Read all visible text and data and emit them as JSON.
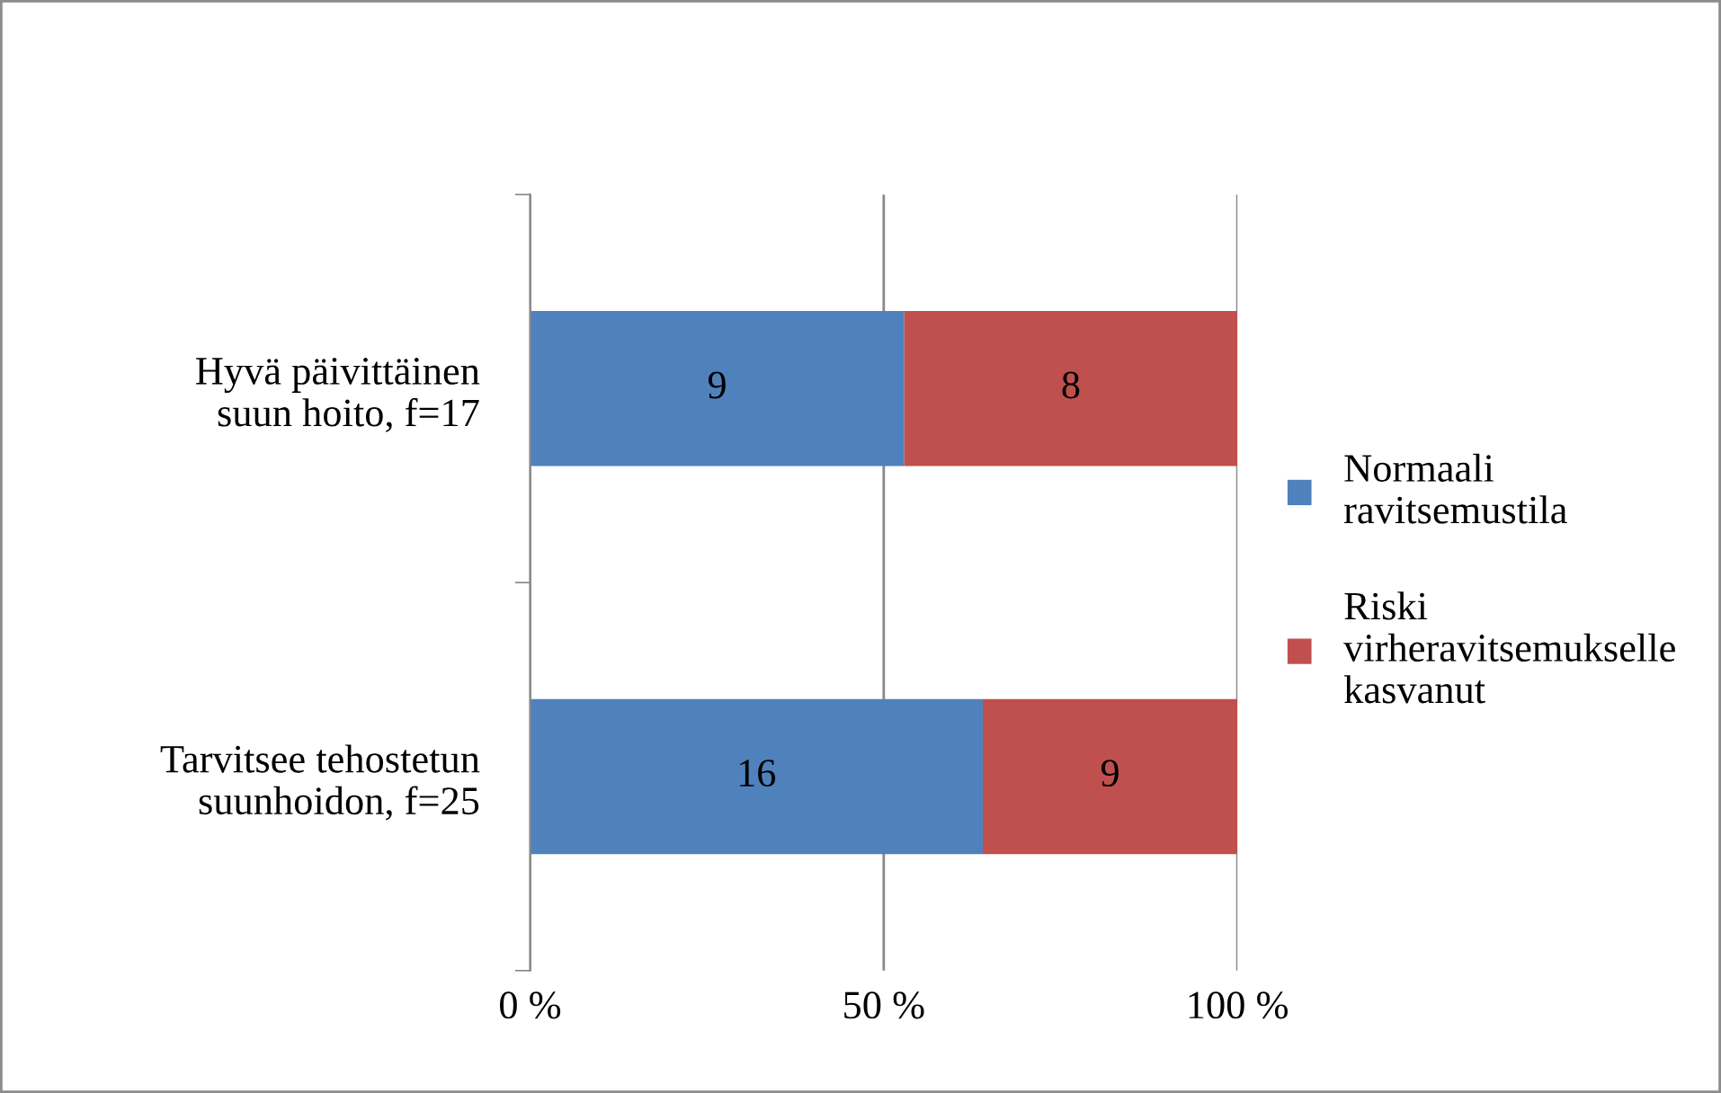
{
  "chart_data": {
    "type": "bar",
    "orientation": "horizontal",
    "stacked": true,
    "categories": [
      "Hyvä päivittäinen suun hoito, f=17",
      "Tarvitsee tehostetun suunhoidon, f=25"
    ],
    "series": [
      {
        "name": "Normaali ravitsemustila",
        "color": "#4f81bd",
        "values": [
          52.9,
          64
        ]
      },
      {
        "name": "Riski virheravitsemukselle kasvanut",
        "color": "#c0504d",
        "values": [
          47.1,
          36
        ]
      }
    ],
    "annotations": [
      "9",
      "8",
      "16",
      "9"
    ],
    "xlim": [
      0,
      100
    ],
    "xticks": [
      {
        "value": 0,
        "label": "0 %"
      },
      {
        "value": 50,
        "label": "50 %"
      },
      {
        "value": 100,
        "label": "100 %"
      }
    ],
    "grid": "x",
    "legend": "right"
  }
}
